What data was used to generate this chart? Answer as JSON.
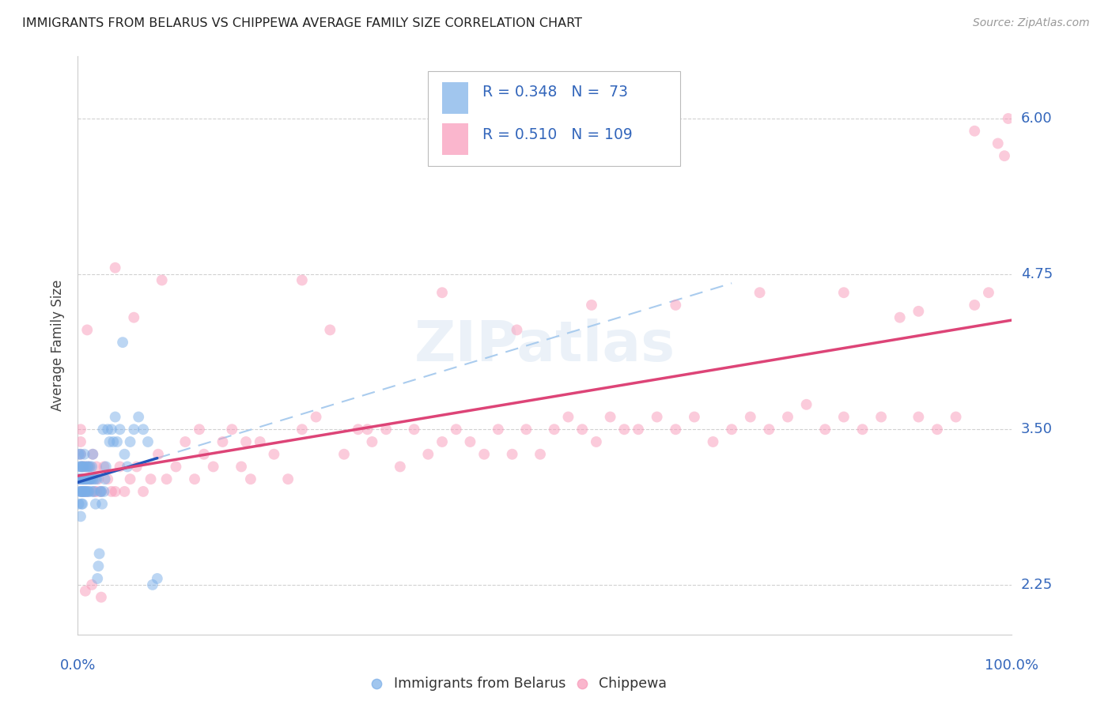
{
  "title": "IMMIGRANTS FROM BELARUS VS CHIPPEWA AVERAGE FAMILY SIZE CORRELATION CHART",
  "source": "Source: ZipAtlas.com",
  "ylabel": "Average Family Size",
  "yticks": [
    2.25,
    3.5,
    4.75,
    6.0
  ],
  "xlim": [
    0.0,
    1.0
  ],
  "ylim": [
    1.85,
    6.5
  ],
  "belarus_color": "#7aaee8",
  "chippewa_color": "#f898b8",
  "belarus_line_color": "#2255bb",
  "chippewa_line_color": "#dd4477",
  "dash_color": "#aaccee",
  "belarus_R": 0.348,
  "belarus_N": 73,
  "chippewa_R": 0.51,
  "chippewa_N": 109,
  "watermark_color": "#6699cc",
  "background_color": "#ffffff",
  "grid_color": "#cccccc",
  "tick_color": "#3366bb",
  "legend_text_color": "#3366bb",
  "title_color": "#222222",
  "ylabel_color": "#444444",
  "source_color": "#999999",
  "marker_size": 100,
  "marker_alpha": 0.5
}
